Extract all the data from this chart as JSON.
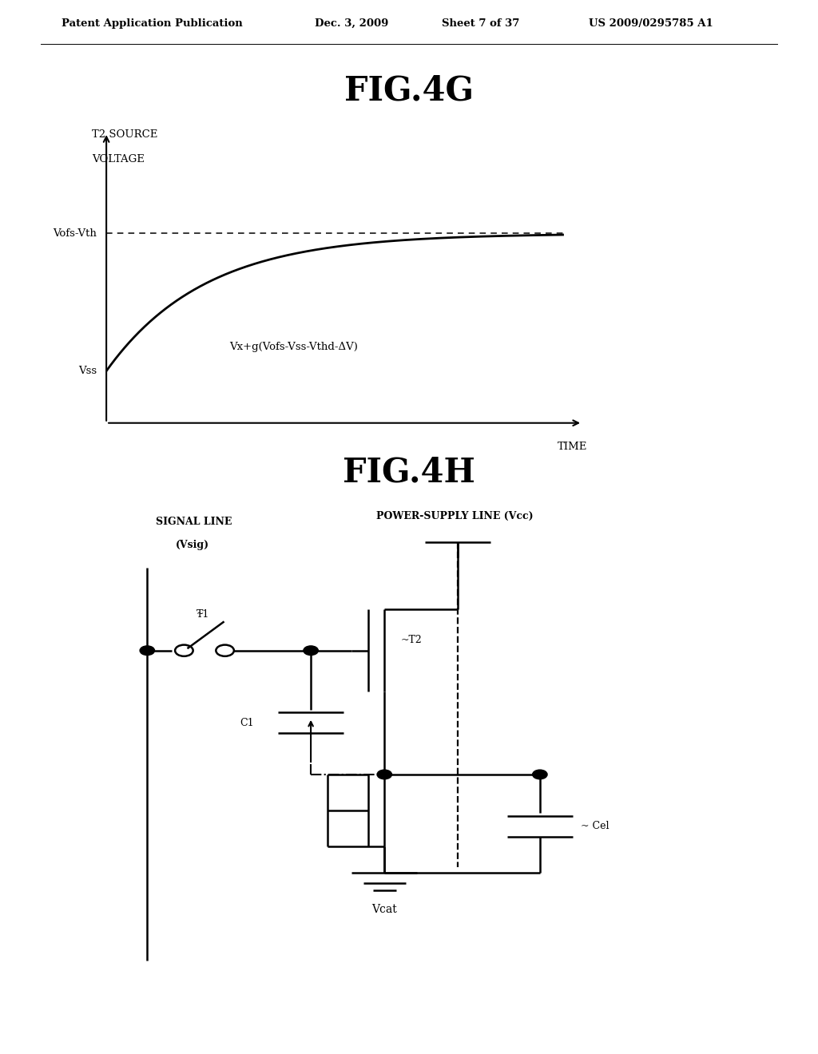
{
  "bg_color": "#ffffff",
  "header_text": "Patent Application Publication",
  "header_date": "Dec. 3, 2009",
  "header_sheet": "Sheet 7 of 37",
  "header_patent": "US 2009/0295785 A1",
  "fig4g_title": "FIG.4G",
  "fig4h_title": "FIG.4H",
  "graph_annotation": "Vx+g(Vofs-Vss-Vthd-ΔV)"
}
